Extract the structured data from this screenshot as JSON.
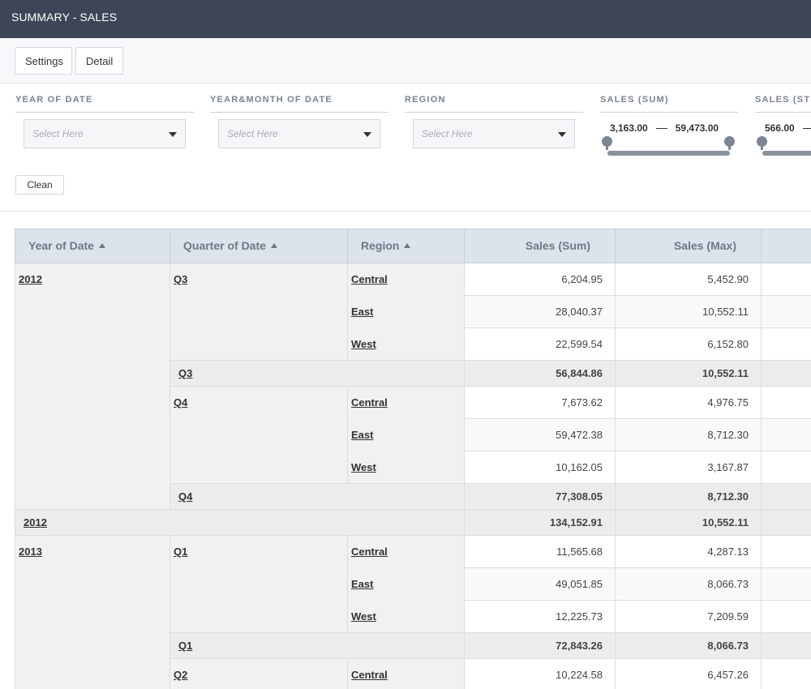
{
  "title": "SUMMARY - SALES",
  "toolbar": {
    "settings": "Settings",
    "detail": "Detail"
  },
  "filters": {
    "year": {
      "label": "YEAR OF DATE",
      "placeholder": "Select Here"
    },
    "yearmonth": {
      "label": "YEAR&MONTH OF DATE",
      "placeholder": "Select Here"
    },
    "region": {
      "label": "REGION",
      "placeholder": "Select Here"
    },
    "sales_sum": {
      "label": "SALES (SUM)",
      "min": "3,163.00",
      "max": "59,473.00"
    },
    "sales_std": {
      "label": "SALES (STD",
      "min": "566.00"
    },
    "clean": "Clean"
  },
  "table": {
    "headers": {
      "year": "Year of Date",
      "quarter": "Quarter of Date",
      "region": "Region",
      "sales_sum": "Sales (Sum)",
      "sales_max": "Sales (Max)"
    },
    "y2012": "2012",
    "q3": "Q3",
    "q4": "Q4",
    "y2013": "2013",
    "q1": "Q1",
    "q2": "Q2",
    "central": "Central",
    "east": "East",
    "west": "West",
    "rows": {
      "r2012q3c": {
        "sum": "6,204.95",
        "max": "5,452.90"
      },
      "r2012q3e": {
        "sum": "28,040.37",
        "max": "10,552.11"
      },
      "r2012q3w": {
        "sum": "22,599.54",
        "max": "6,152.80"
      },
      "s2012q3": {
        "sum": "56,844.86",
        "max": "10,552.11"
      },
      "r2012q4c": {
        "sum": "7,673.62",
        "max": "4,976.75"
      },
      "r2012q4e": {
        "sum": "59,472.38",
        "max": "8,712.30"
      },
      "r2012q4w": {
        "sum": "10,162.05",
        "max": "3,167.87"
      },
      "s2012q4": {
        "sum": "77,308.05",
        "max": "8,712.30"
      },
      "s2012": {
        "sum": "134,152.91",
        "max": "10,552.11"
      },
      "r2013q1c": {
        "sum": "11,565.68",
        "max": "4,287.13"
      },
      "r2013q1e": {
        "sum": "49,051.85",
        "max": "8,066.73"
      },
      "r2013q1w": {
        "sum": "12,225.73",
        "max": "7,209.59"
      },
      "s2013q1": {
        "sum": "72,843.26",
        "max": "8,066.73"
      },
      "r2013q2c": {
        "sum": "10,224.58",
        "max": "6,457.26"
      }
    }
  }
}
